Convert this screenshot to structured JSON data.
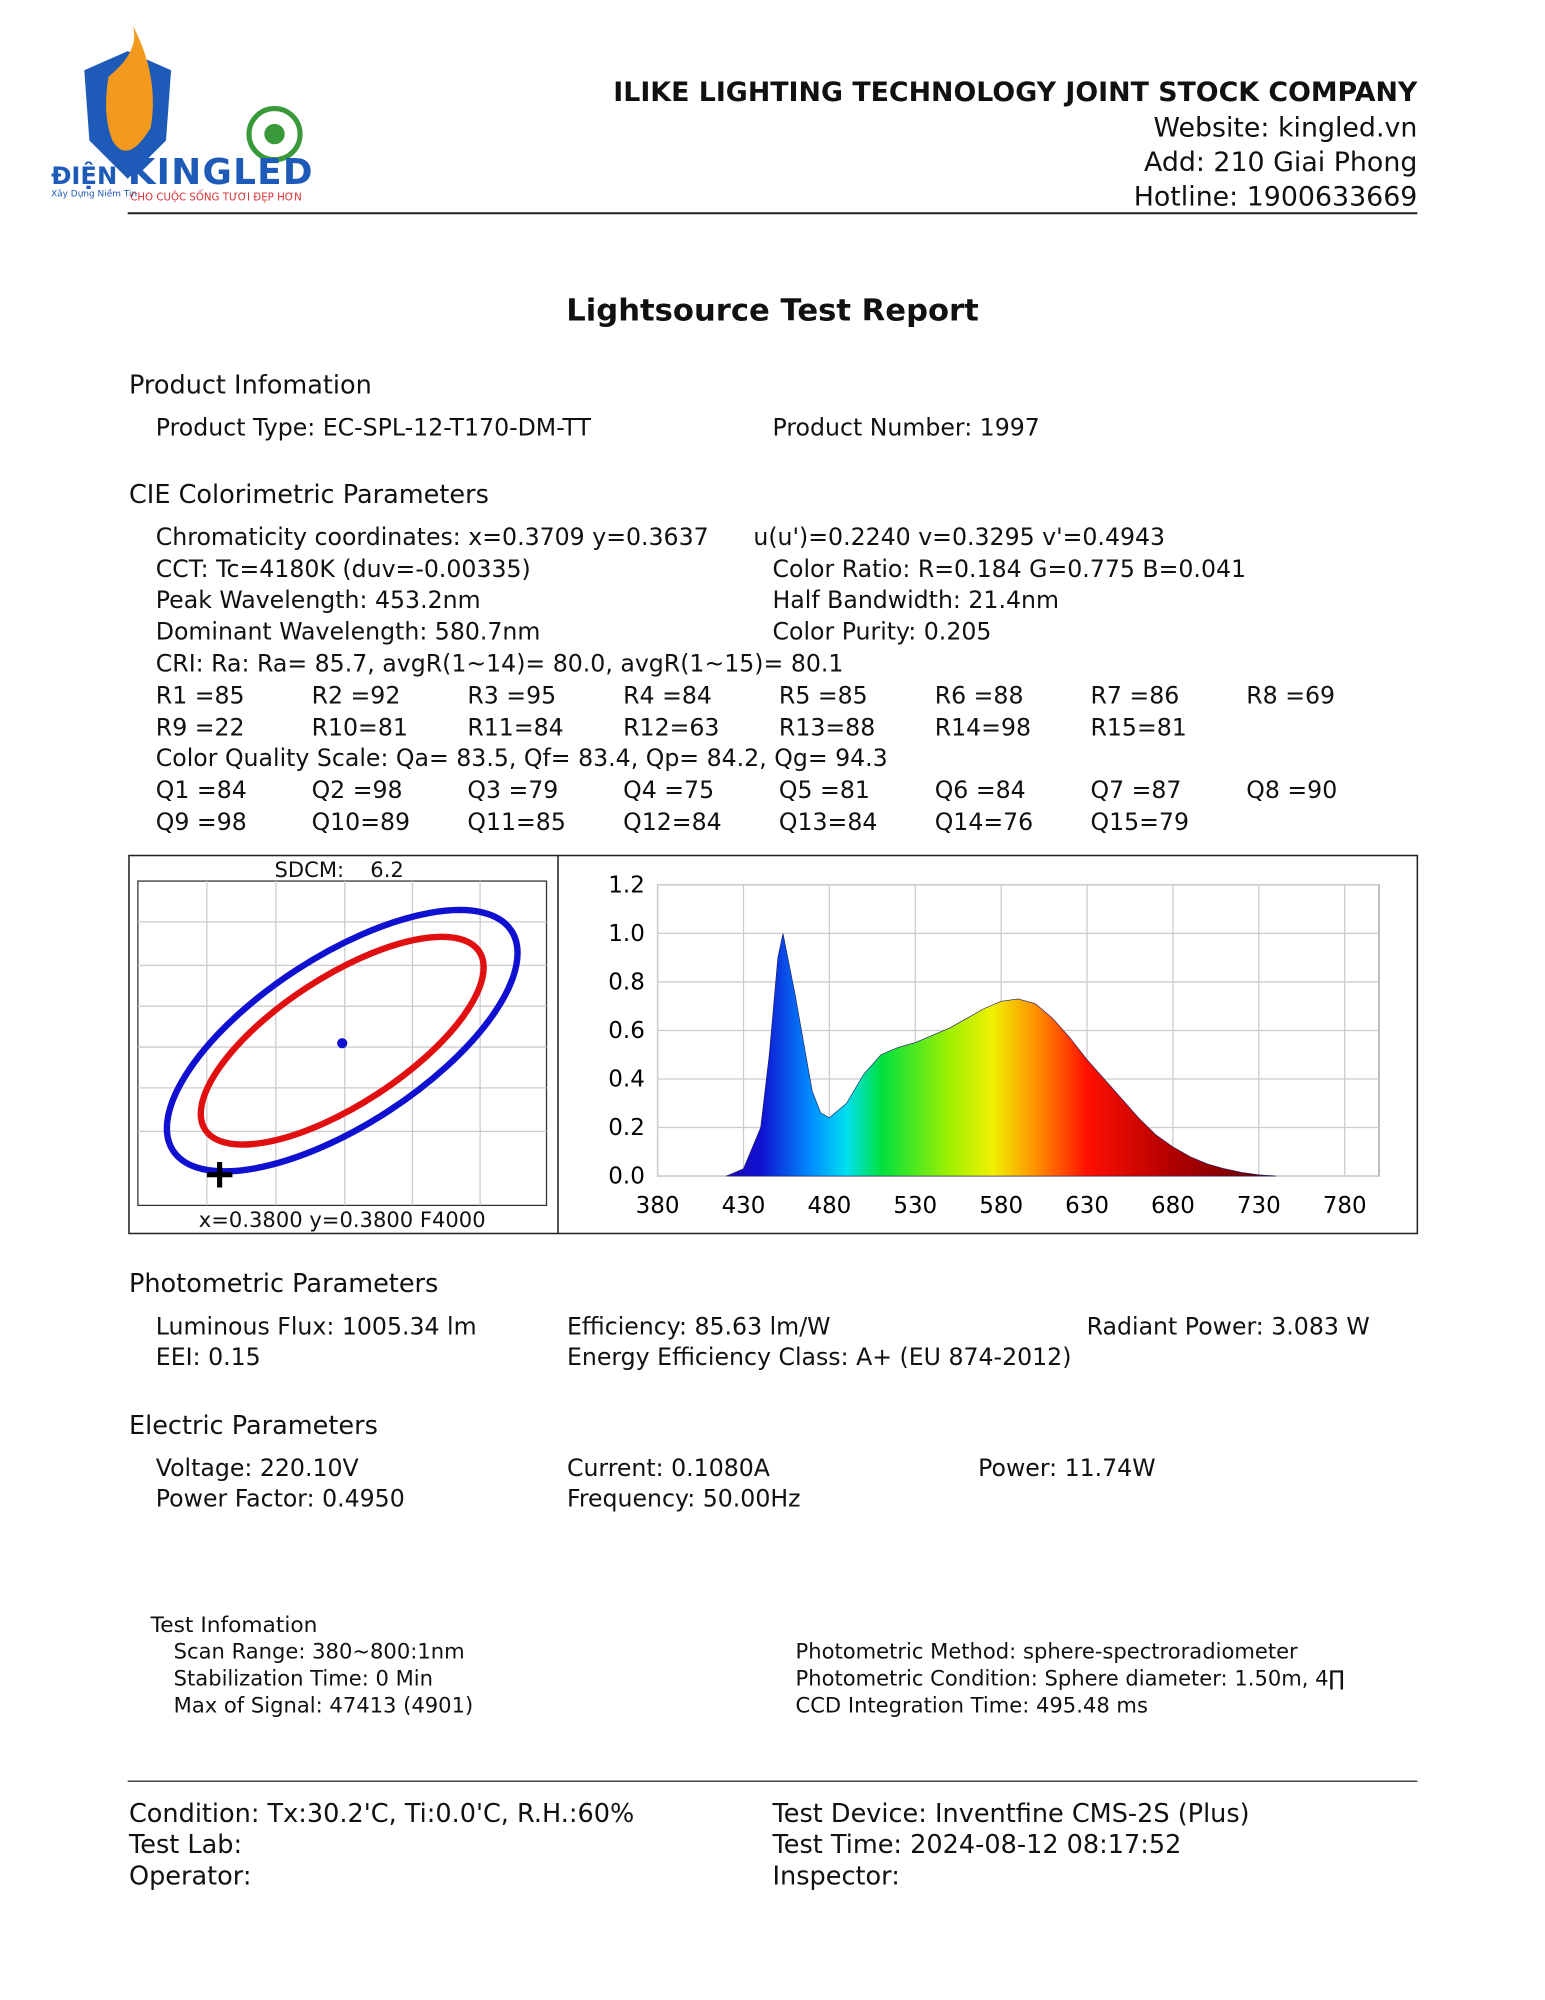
{
  "logo": {
    "brand_a": "ĐIỆN",
    "brand_b": "KINGLED",
    "slogan_a": "Xây Dựng Niềm Tin",
    "slogan_b": "CHO CUỘC SỐNG TƯƠI ĐẸP HƠN"
  },
  "header": {
    "company": "ILIKE LIGHTING TECHNOLOGY JOINT STOCK COMPANY",
    "website": "Website: kingled.vn",
    "address": "Add: 210 Giai Phong",
    "hotline": "Hotline: 1900633669"
  },
  "title": "Lightsource Test Report",
  "product": {
    "heading": "Product Infomation",
    "type": "Product Type: EC-SPL-12-T170-DM-TT",
    "number": "Product Number: 1997"
  },
  "cie": {
    "heading": "CIE Colorimetric Parameters",
    "chromaticity": "Chromaticity coordinates: x=0.3709 y=0.3637",
    "uv": "u(u')=0.2240 v=0.3295 v'=0.4943",
    "cct": "CCT: Tc=4180K (duv=-0.00335)",
    "color_ratio": "Color Ratio: R=0.184  G=0.775  B=0.041",
    "peak": "Peak Wavelength: 453.2nm",
    "half_bandwidth": "Half Bandwidth: 21.4nm",
    "dominant": "Dominant Wavelength: 580.7nm",
    "purity": "Color Purity: 0.205",
    "cri": "CRI: Ra: Ra= 85.7, avgR(1~14)= 80.0, avgR(1~15)= 80.1",
    "r_values": [
      [
        "R1 =85",
        "R2 =92",
        "R3 =95",
        "R4 =84",
        "R5 =85",
        "R6 =88",
        "R7 =86",
        "R8 =69"
      ],
      [
        "R9 =22",
        "R10=81",
        "R11=84",
        "R12=63",
        "R13=88",
        "R14=98",
        "R15=81"
      ]
    ],
    "cqs": "Color Quality Scale: Qa= 83.5, Qf= 83.4, Qp= 84.2, Qg= 94.3",
    "q_values": [
      [
        "Q1 =84",
        "Q2 =98",
        "Q3 =79",
        "Q4 =75",
        "Q5 =81",
        "Q6 =84",
        "Q7 =87",
        "Q8 =90"
      ],
      [
        "Q9 =98",
        "Q10=89",
        "Q11=85",
        "Q12=84",
        "Q13=84",
        "Q14=76",
        "Q15=79"
      ]
    ]
  },
  "sdcm": {
    "label": "SDCM:",
    "value": "6.2",
    "caption": "x=0.3800 y=0.3800 F4000"
  },
  "chart_data": {
    "type": "area",
    "x": [
      420,
      430,
      440,
      445,
      450,
      453,
      460,
      465,
      470,
      475,
      480,
      490,
      500,
      510,
      520,
      530,
      540,
      550,
      560,
      570,
      580,
      590,
      600,
      610,
      620,
      630,
      640,
      650,
      660,
      670,
      680,
      690,
      700,
      710,
      720,
      730,
      740
    ],
    "values": [
      0,
      0.03,
      0.2,
      0.5,
      0.9,
      1.0,
      0.75,
      0.55,
      0.35,
      0.26,
      0.24,
      0.3,
      0.42,
      0.5,
      0.53,
      0.55,
      0.58,
      0.61,
      0.65,
      0.69,
      0.72,
      0.73,
      0.71,
      0.65,
      0.57,
      0.48,
      0.4,
      0.32,
      0.24,
      0.17,
      0.12,
      0.08,
      0.05,
      0.03,
      0.015,
      0.005,
      0
    ],
    "xlim": [
      380,
      800
    ],
    "ylim": [
      0,
      1.2
    ],
    "xticks": [
      380,
      430,
      480,
      530,
      580,
      630,
      680,
      730,
      780
    ],
    "yticks": [
      {
        "value": 0,
        "label": "0.0"
      },
      0.2,
      0.4,
      0.6,
      0.8,
      {
        "value": 1,
        "label": "1.0"
      },
      1.2
    ],
    "grid": true
  },
  "photometric": {
    "heading": "Photometric Parameters",
    "flux": "Luminous Flux: 1005.34 lm",
    "efficiency": "Efficiency: 85.63 lm/W",
    "radiant": "Radiant Power: 3.083 W",
    "eei": "EEI:  0.15",
    "eec": "Energy Efficiency Class: A+ (EU 874-2012)"
  },
  "electric": {
    "heading": "Electric Parameters",
    "voltage": "Voltage: 220.10V",
    "current": "Current: 0.1080A",
    "power": "Power: 11.74W",
    "pf": "Power Factor: 0.4950",
    "frequency": "Frequency: 50.00Hz"
  },
  "test_info": {
    "heading": "Test Infomation",
    "scan": "Scan Range: 380~800:1nm",
    "stabilization": "Stabilization Time: 0 Min",
    "max_signal": "Max of Signal: 47413 (4901)",
    "method": "Photometric Method: sphere-spectroradiometer",
    "condition": "Photometric Condition: Sphere diameter: 1.50m, 4∏",
    "ccd": "CCD Integration Time: 495.48 ms"
  },
  "footer": {
    "condition": "Condition: Tx:30.2'C, Ti:0.0'C, R.H.:60%",
    "device": "Test Device: Inventfine CMS-2S (Plus)",
    "lab": "Test Lab:",
    "time": "Test Time: 2024-08-12 08:17:52",
    "operator": "Operator:",
    "inspector": "Inspector:"
  }
}
